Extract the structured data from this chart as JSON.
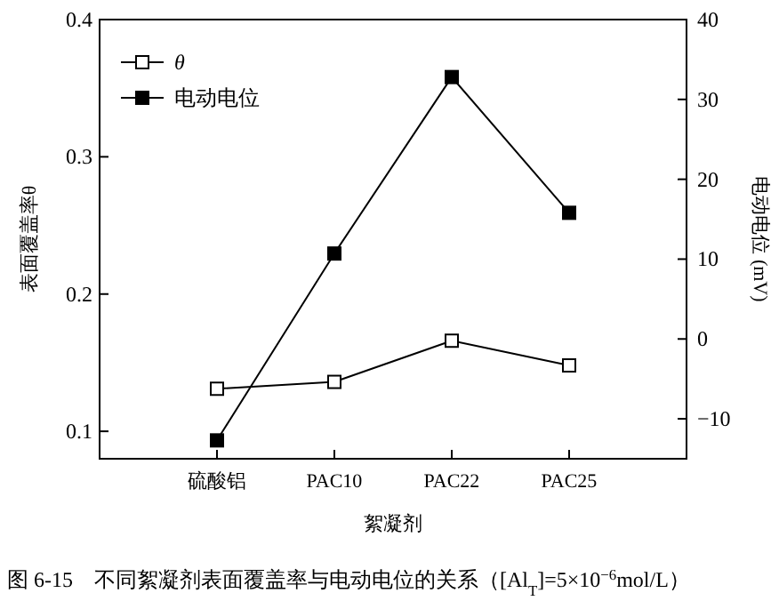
{
  "chart_data": {
    "type": "line",
    "categories": [
      "硫酸铝",
      "PAC10",
      "PAC22",
      "PAC25"
    ],
    "series": [
      {
        "name": "θ",
        "color": "#000000",
        "values": [
          0.131,
          0.136,
          0.166,
          0.148
        ]
      },
      {
        "name": "电动电位",
        "color": "#000000",
        "axis": "y2",
        "values": [
          -12.7,
          10.7,
          32.8,
          15.8
        ]
      }
    ],
    "xlabel": "絮凝剂",
    "ylabel": "表面覆盖率θ",
    "y2label": "电动电位 (mV)",
    "ylim": [
      0.08,
      0.4
    ],
    "yticks": [
      0.1,
      0.2,
      0.3,
      0.4
    ],
    "y2lim": [
      -15,
      40
    ],
    "y2ticks": [
      -10,
      0,
      10,
      20,
      30,
      40
    ],
    "marker": "square",
    "line_style": "solid",
    "legend": "top left",
    "grid": false,
    "annotations": [
      "图 6-15　不同絮凝剂表面覆盖率与电动电位的关系（[Al$_{T}$]=5×10$^{−6}$mol/L）"
    ]
  }
}
